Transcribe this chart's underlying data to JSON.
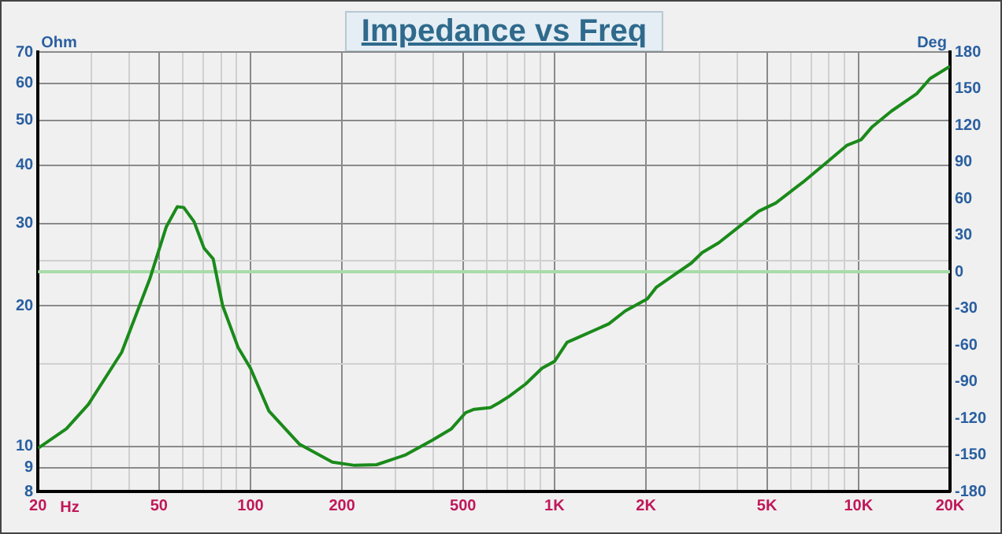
{
  "chart_data": {
    "type": "line",
    "title": "Impedance vs Freq",
    "xlabel": "Hz",
    "ylabel": "Ohm",
    "y2label": "Deg",
    "log": "xy",
    "grid": true,
    "legend": false,
    "marker": "none",
    "line_style": "solid",
    "xlim": [
      20,
      20000
    ],
    "xticks": [
      20,
      {
        "value": 30,
        "label": null
      },
      {
        "value": 40,
        "label": null
      },
      50,
      {
        "value": 60,
        "label": null
      },
      {
        "value": 70,
        "label": null
      },
      {
        "value": 80,
        "label": null
      },
      {
        "value": 90,
        "label": null
      },
      100,
      200,
      {
        "value": 300,
        "label": null
      },
      {
        "value": 400,
        "label": null
      },
      500,
      {
        "value": 600,
        "label": null
      },
      {
        "value": 700,
        "label": null
      },
      {
        "value": 800,
        "label": null
      },
      {
        "value": 900,
        "label": null
      },
      {
        "value": 1000,
        "label": "1K"
      },
      {
        "value": 2000,
        "label": "2K"
      },
      {
        "value": 3000,
        "label": null
      },
      {
        "value": 4000,
        "label": null
      },
      {
        "value": 5000,
        "label": "5K"
      },
      {
        "value": 6000,
        "label": null
      },
      {
        "value": 7000,
        "label": null
      },
      {
        "value": 8000,
        "label": null
      },
      {
        "value": 9000,
        "label": null
      },
      {
        "value": 10000,
        "label": "10K"
      },
      {
        "value": 20000,
        "label": "20K"
      }
    ],
    "ylim": [
      8,
      70
    ],
    "yticks": [
      8,
      9,
      10,
      {
        "value": 15,
        "label": null
      },
      20,
      {
        "value": 25,
        "label": null
      },
      30,
      40,
      50,
      60,
      70
    ],
    "y2lim": [
      -180,
      180
    ],
    "y2ticks": [
      -180,
      -150,
      -120,
      -90,
      -60,
      -30,
      0,
      30,
      60,
      90,
      120,
      150,
      180
    ],
    "ref_lines": [
      {
        "axis": "y2",
        "value": 0,
        "color": "#a8dca8"
      }
    ],
    "series": [
      {
        "color": "#1a8a1a",
        "x": [
          20,
          24.8,
          29.3,
          37.7,
          46.6,
          52.8,
          57.4,
          60.3,
          65.2,
          70.3,
          75.4,
          81,
          91,
          100,
          115,
          145,
          186,
          220,
          260,
          322,
          396,
          458,
          510,
          544,
          616,
          658,
          710,
          804,
          910,
          1000,
          1100,
          1170,
          1510,
          1710,
          2020,
          2160,
          2500,
          2820,
          3060,
          3470,
          4140,
          4700,
          5340,
          6560,
          7760,
          9180,
          10200,
          11100,
          12840,
          15560,
          17200,
          20000
        ],
        "values": [
          9.9,
          10.9,
          12.3,
          15.9,
          22.8,
          29.5,
          32.6,
          32.5,
          30.3,
          26.6,
          25.2,
          20.0,
          16.3,
          14.7,
          11.9,
          10.1,
          9.25,
          9.1,
          9.13,
          9.57,
          10.3,
          10.9,
          11.8,
          12.0,
          12.1,
          12.4,
          12.8,
          13.6,
          14.7,
          15.2,
          16.7,
          17.0,
          18.3,
          19.5,
          20.7,
          21.9,
          23.4,
          24.7,
          26.0,
          27.3,
          29.9,
          31.9,
          33.2,
          36.8,
          40.3,
          44.2,
          45.4,
          48.4,
          52.3,
          57.0,
          61.4,
          65.2
        ]
      }
    ]
  }
}
